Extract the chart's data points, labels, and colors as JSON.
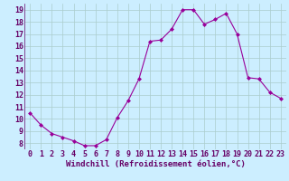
{
  "x": [
    0,
    1,
    2,
    3,
    4,
    5,
    6,
    7,
    8,
    9,
    10,
    11,
    12,
    13,
    14,
    15,
    16,
    17,
    18,
    19,
    20,
    21,
    22,
    23
  ],
  "y": [
    10.5,
    9.5,
    8.8,
    8.5,
    8.2,
    7.8,
    7.8,
    8.3,
    10.1,
    11.5,
    13.3,
    16.4,
    16.5,
    17.4,
    19.0,
    19.0,
    17.8,
    18.2,
    18.7,
    17.0,
    13.4,
    13.3,
    12.2,
    11.7
  ],
  "line_color": "#990099",
  "marker": "D",
  "marker_size": 2.0,
  "bg_color": "#cceeff",
  "grid_color": "#aacccc",
  "xlabel": "Windchill (Refroidissement éolien,°C)",
  "xlabel_color": "#660066",
  "xlabel_fontsize": 6.5,
  "tick_color": "#660066",
  "tick_fontsize": 6,
  "ylim": [
    7.5,
    19.5
  ],
  "xlim": [
    -0.5,
    23.5
  ],
  "yticks": [
    8,
    9,
    10,
    11,
    12,
    13,
    14,
    15,
    16,
    17,
    18,
    19
  ],
  "xticks": [
    0,
    1,
    2,
    3,
    4,
    5,
    6,
    7,
    8,
    9,
    10,
    11,
    12,
    13,
    14,
    15,
    16,
    17,
    18,
    19,
    20,
    21,
    22,
    23
  ]
}
